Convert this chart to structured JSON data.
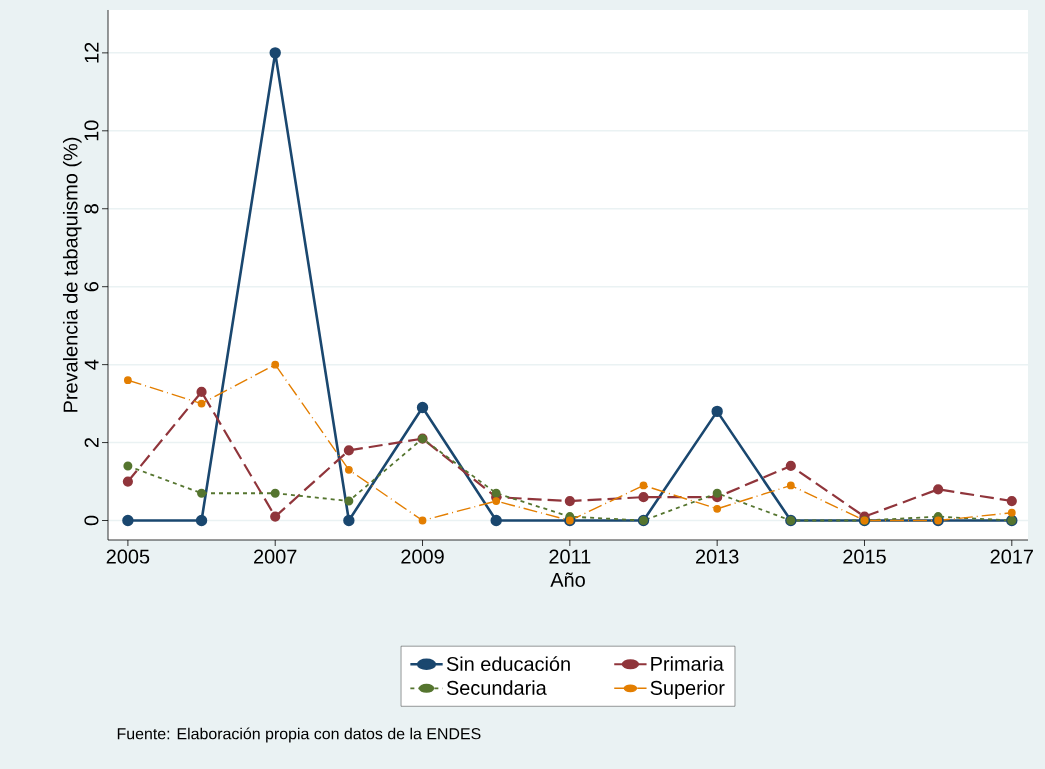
{
  "chart_data": {
    "type": "line",
    "xlabel": "Año",
    "ylabel": "Prevalencia de tabaquismo (%)",
    "x": [
      2005,
      2006,
      2007,
      2008,
      2009,
      2010,
      2011,
      2012,
      2013,
      2014,
      2015,
      2016,
      2017
    ],
    "series": [
      {
        "name": "Sin educación",
        "color": "#1a476f",
        "line_style": "solid",
        "values": [
          0,
          0,
          12,
          0,
          2.9,
          0,
          0,
          0,
          2.8,
          0,
          0,
          0,
          0
        ]
      },
      {
        "name": "Primaria",
        "color": "#90353b",
        "line_style": "dashed",
        "values": [
          1.0,
          3.3,
          0.1,
          1.8,
          2.1,
          0.6,
          0.5,
          0.6,
          0.6,
          1.4,
          0.1,
          0.8,
          0.5
        ]
      },
      {
        "name": "Secundaria",
        "color": "#55752f",
        "line_style": "dotted",
        "values": [
          1.4,
          0.7,
          0.7,
          0.5,
          2.1,
          0.7,
          0.1,
          0,
          0.7,
          0,
          0,
          0.1,
          0
        ]
      },
      {
        "name": "Superior",
        "color": "#e37e00",
        "line_style": "dashdot",
        "values": [
          3.6,
          3.0,
          4.0,
          1.3,
          0,
          0.5,
          0,
          0.9,
          0.3,
          0.9,
          0,
          0,
          0.2
        ]
      }
    ],
    "xlim": [
      2004.73,
      2017.22
    ],
    "ylim": [
      -0.5,
      13.1
    ],
    "xticks": [
      2005,
      2007,
      2009,
      2011,
      2013,
      2015,
      2017
    ],
    "yticks": [
      0,
      2,
      4,
      6,
      8,
      10,
      12
    ],
    "grid": "y",
    "legend": "bottom",
    "marker": "circle",
    "annotations": [
      "Fuente: Elaboración propia con datos de la ENDES"
    ]
  }
}
